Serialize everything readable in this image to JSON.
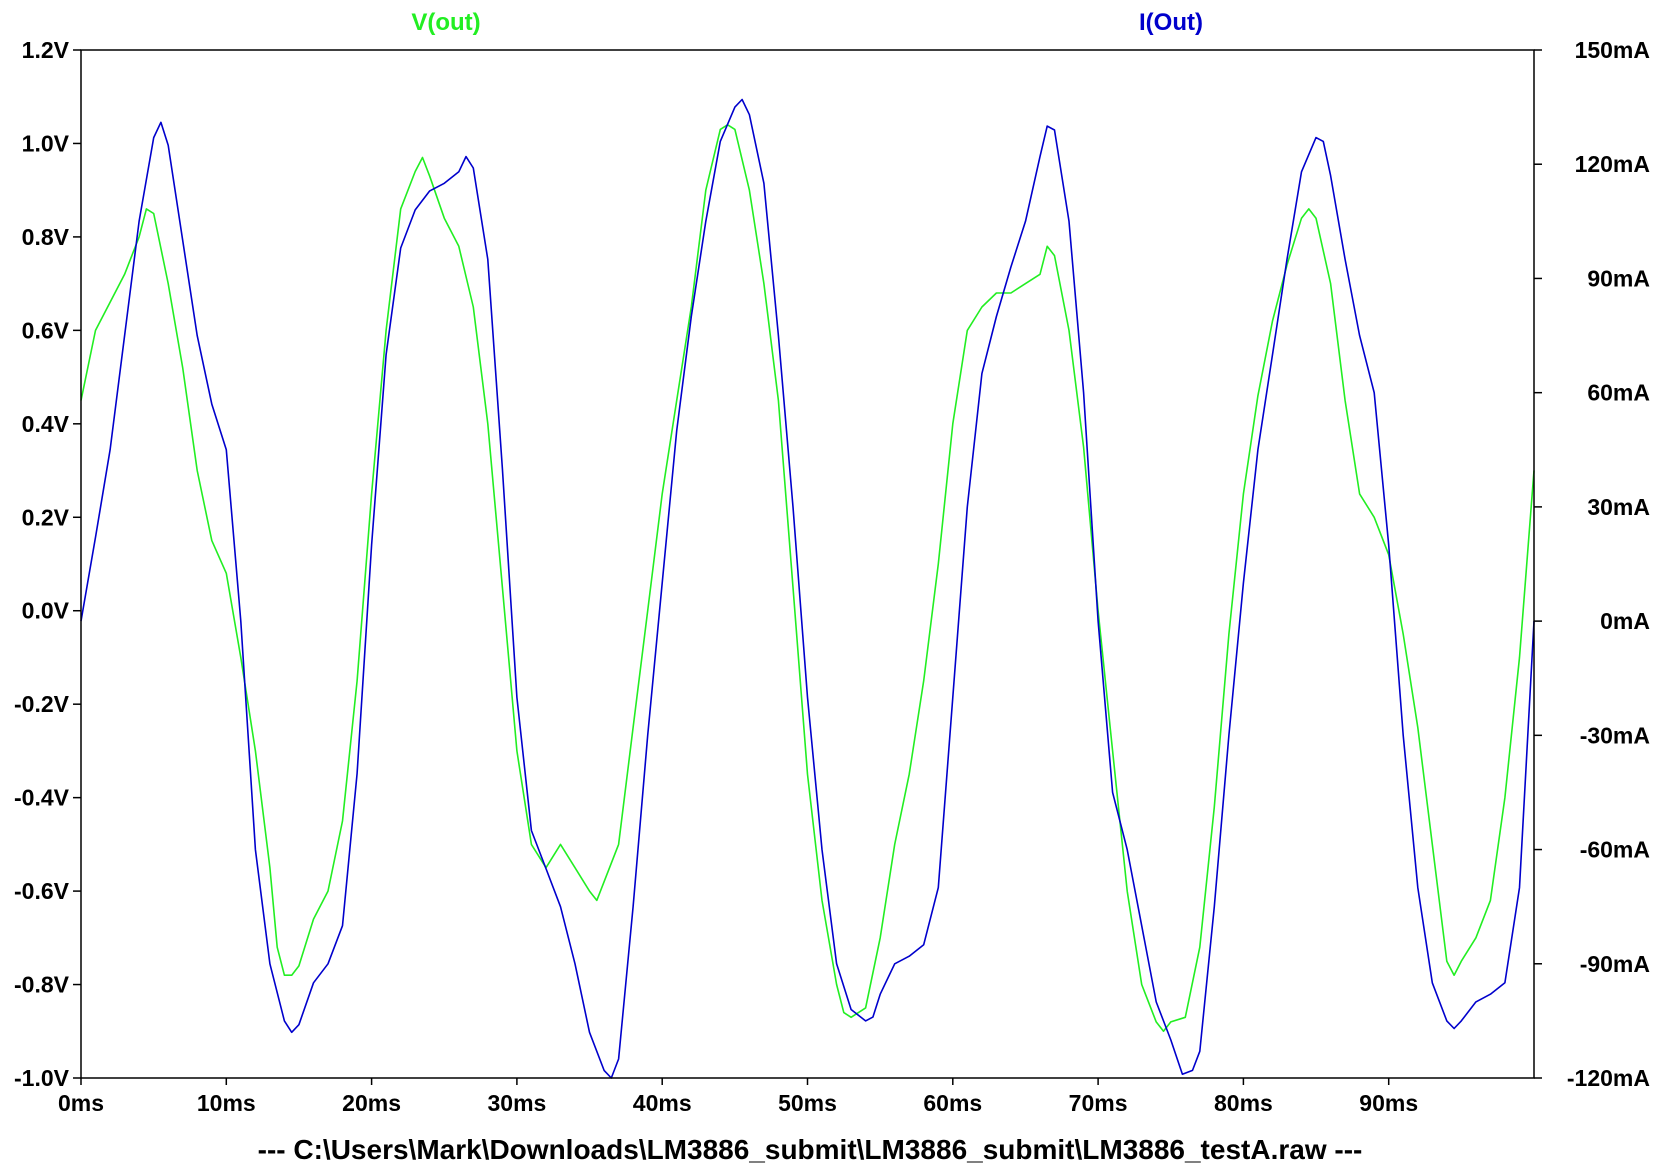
{
  "chart_data": {
    "type": "line",
    "footer": "---  C:\\Users\\Mark\\Downloads\\LM3886_submit\\LM3886_submit\\LM3886_testA.raw  ---",
    "x_ticks": [
      "0ms",
      "10ms",
      "20ms",
      "30ms",
      "40ms",
      "50ms",
      "60ms",
      "70ms",
      "80ms",
      "90ms"
    ],
    "x_tick_values": [
      0,
      10,
      20,
      30,
      40,
      50,
      60,
      70,
      80,
      90
    ],
    "xlim": [
      0,
      100
    ],
    "y_left_ticks": [
      "1.2V",
      "1.0V",
      "0.8V",
      "0.6V",
      "0.4V",
      "0.2V",
      "0.0V",
      "-0.2V",
      "-0.4V",
      "-0.6V",
      "-0.8V",
      "-1.0V"
    ],
    "y_left_tick_values": [
      1.2,
      1.0,
      0.8,
      0.6,
      0.4,
      0.2,
      0.0,
      -0.2,
      -0.4,
      -0.6,
      -0.8,
      -1.0
    ],
    "y_left_lim": [
      -1.0,
      1.2
    ],
    "y_right_ticks": [
      "150mA",
      "120mA",
      "90mA",
      "60mA",
      "30mA",
      "0mA",
      "-30mA",
      "-60mA",
      "-90mA",
      "-120mA"
    ],
    "y_right_tick_values": [
      150,
      120,
      90,
      60,
      30,
      0,
      -30,
      -60,
      -90,
      -120
    ],
    "y_right_lim": [
      -120,
      150
    ],
    "grid": false,
    "series": [
      {
        "name": "V(out)",
        "axis": "left",
        "color": "#22ee22",
        "x": [
          0,
          1,
          2,
          3,
          4,
          4.5,
          5,
          6,
          7,
          8,
          9,
          10,
          11,
          12,
          13,
          13.5,
          14,
          14.5,
          15,
          16,
          17,
          18,
          19,
          20,
          21,
          22,
          23,
          23.5,
          24,
          25,
          26,
          27,
          28,
          29,
          30,
          31,
          32,
          33,
          34,
          35,
          35.5,
          36,
          37,
          38,
          39,
          40,
          41,
          42,
          43,
          44,
          44.5,
          45,
          46,
          47,
          48,
          49,
          50,
          51,
          52,
          52.5,
          53,
          54,
          55,
          56,
          57,
          58,
          59,
          60,
          61,
          62,
          63,
          64,
          65,
          66,
          66.5,
          67,
          68,
          69,
          70,
          71,
          72,
          73,
          74,
          74.5,
          75,
          76,
          77,
          78,
          79,
          80,
          81,
          82,
          83,
          84,
          84.5,
          85,
          86,
          87,
          88,
          89,
          90,
          91,
          92,
          93,
          94,
          94.5,
          95,
          96,
          97,
          98,
          99,
          100
        ],
        "y": [
          0.45,
          0.6,
          0.66,
          0.72,
          0.8,
          0.86,
          0.85,
          0.7,
          0.52,
          0.3,
          0.15,
          0.08,
          -0.1,
          -0.3,
          -0.55,
          -0.72,
          -0.78,
          -0.78,
          -0.76,
          -0.66,
          -0.6,
          -0.45,
          -0.15,
          0.25,
          0.6,
          0.86,
          0.94,
          0.97,
          0.93,
          0.84,
          0.78,
          0.65,
          0.4,
          0.05,
          -0.3,
          -0.5,
          -0.55,
          -0.5,
          -0.55,
          -0.6,
          -0.62,
          -0.58,
          -0.5,
          -0.25,
          0.0,
          0.25,
          0.45,
          0.65,
          0.9,
          1.03,
          1.04,
          1.03,
          0.9,
          0.7,
          0.45,
          0.05,
          -0.35,
          -0.62,
          -0.8,
          -0.86,
          -0.87,
          -0.85,
          -0.7,
          -0.5,
          -0.35,
          -0.15,
          0.1,
          0.4,
          0.6,
          0.65,
          0.68,
          0.68,
          0.7,
          0.72,
          0.78,
          0.76,
          0.6,
          0.35,
          0.0,
          -0.3,
          -0.6,
          -0.8,
          -0.88,
          -0.9,
          -0.88,
          -0.87,
          -0.72,
          -0.42,
          -0.05,
          0.25,
          0.46,
          0.62,
          0.74,
          0.84,
          0.86,
          0.84,
          0.7,
          0.45,
          0.25,
          0.2,
          0.12,
          -0.05,
          -0.25,
          -0.5,
          -0.75,
          -0.78,
          -0.75,
          -0.7,
          -0.62,
          -0.4,
          -0.1,
          0.3
        ]
      },
      {
        "name": "I(Out)",
        "axis": "right",
        "color": "#0000cc",
        "x": [
          0,
          1,
          2,
          3,
          4,
          5,
          5.5,
          6,
          7,
          8,
          9,
          10,
          11,
          12,
          13,
          14,
          14.5,
          15,
          16,
          17,
          18,
          19,
          20,
          21,
          22,
          23,
          24,
          25,
          26,
          26.5,
          27,
          28,
          29,
          30,
          31,
          32,
          33,
          34,
          35,
          36,
          36.5,
          37,
          38,
          39,
          40,
          41,
          42,
          43,
          44,
          45,
          45.5,
          46,
          47,
          48,
          49,
          50,
          51,
          52,
          53,
          54,
          54.5,
          55,
          56,
          57,
          58,
          59,
          60,
          61,
          62,
          63,
          64,
          65,
          66,
          66.5,
          67,
          68,
          69,
          70,
          71,
          72,
          73,
          74,
          75,
          75.8,
          76.5,
          77,
          78,
          79,
          80,
          81,
          82,
          83,
          84,
          85,
          85.5,
          86,
          87,
          88,
          89,
          90,
          91,
          92,
          93,
          94,
          94.5,
          95,
          96,
          97,
          98,
          99,
          100
        ],
        "y": [
          0,
          22,
          45,
          75,
          105,
          127,
          131,
          125,
          100,
          75,
          57,
          45,
          0,
          -60,
          -90,
          -105,
          -108,
          -106,
          -95,
          -90,
          -80,
          -40,
          20,
          70,
          98,
          108,
          113,
          115,
          118,
          122,
          119,
          95,
          40,
          -20,
          -55,
          -65,
          -75,
          -90,
          -108,
          -118,
          -120,
          -115,
          -75,
          -30,
          10,
          50,
          80,
          105,
          126,
          135,
          137,
          133,
          115,
          75,
          30,
          -20,
          -60,
          -90,
          -102,
          -105,
          -104,
          -98,
          -90,
          -88,
          -85,
          -70,
          -20,
          30,
          65,
          80,
          93,
          105,
          122,
          130,
          129,
          105,
          60,
          0,
          -45,
          -60,
          -80,
          -100,
          -110,
          -119,
          -118,
          -113,
          -75,
          -30,
          10,
          45,
          70,
          95,
          118,
          127,
          126,
          117,
          95,
          75,
          60,
          20,
          -30,
          -70,
          -95,
          -105,
          -107,
          -105,
          -100,
          -98,
          -95,
          -70,
          0
        ]
      }
    ]
  }
}
